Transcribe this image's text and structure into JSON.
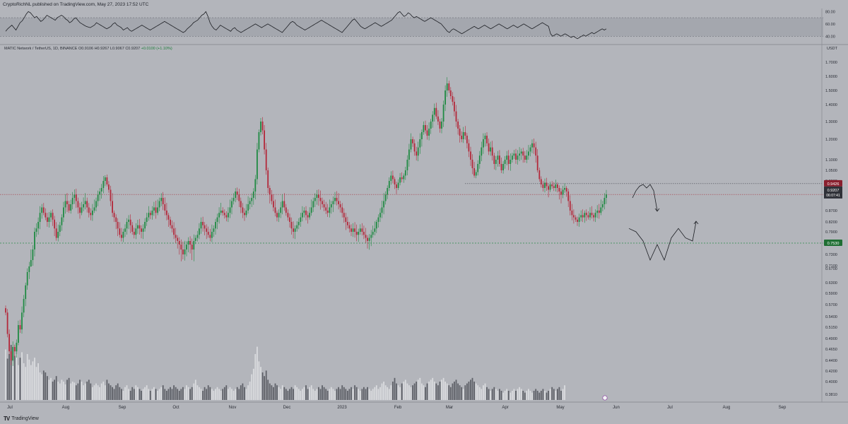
{
  "header": {
    "publisher": "CryptoRichNL published on TradingView.com, May 27, 2023 17:52 UTC"
  },
  "legend": {
    "symbol": "MATIC Network / TetherUS, 1D, BINANCE",
    "o": "O0.9106",
    "h": "H0.9267",
    "l": "L0.9067",
    "c": "C0.9207",
    "chg": "+0.0100 (+1.10%)"
  },
  "currency": "USDT",
  "footer": {
    "brand": "TradingView"
  },
  "colors": {
    "background": "#b3b5bb",
    "up": "#1f8a43",
    "down": "#b3283a",
    "axis_text": "#2a2d35",
    "resistance_line": "#a83a46",
    "support_line": "#2e8f4c",
    "current_price_label": "#8a1f2e",
    "support_label": "#1f6e33"
  },
  "chart_data": [
    {
      "type": "line",
      "name_hint": "oscillator",
      "y_ticks": [
        80,
        60,
        40
      ],
      "y_tick_labels": [
        "80.00",
        "60.00",
        "40.00"
      ],
      "ylim": [
        30,
        85
      ],
      "band": [
        40,
        70
      ],
      "values": [
        48,
        52,
        55,
        58,
        54,
        50,
        56,
        62,
        65,
        70,
        76,
        80,
        78,
        74,
        70,
        72,
        68,
        64,
        66,
        70,
        74,
        72,
        70,
        68,
        66,
        70,
        72,
        74,
        72,
        68,
        66,
        62,
        64,
        68,
        70,
        66,
        62,
        60,
        58,
        56,
        55,
        54,
        56,
        58,
        62,
        60,
        58,
        56,
        54,
        52,
        54,
        56,
        60,
        62,
        58,
        56,
        54,
        50,
        52,
        54,
        50,
        48,
        50,
        52,
        54,
        56,
        58,
        56,
        54,
        52,
        50,
        52,
        54,
        56,
        58,
        60,
        62,
        64,
        62,
        60,
        58,
        56,
        54,
        52,
        50,
        48,
        46,
        48,
        52,
        55,
        58,
        62,
        64,
        66,
        70,
        74,
        76,
        80,
        72,
        62,
        56,
        52,
        50,
        54,
        58,
        56,
        54,
        52,
        50,
        48,
        52,
        54,
        50,
        48,
        46,
        48,
        50,
        52,
        54,
        56,
        58,
        60,
        58,
        56,
        54,
        56,
        58,
        60,
        58,
        56,
        54,
        52,
        50,
        48,
        46,
        50,
        54,
        58,
        62,
        64,
        62,
        58,
        56,
        54,
        52,
        50,
        52,
        54,
        56,
        58,
        60,
        62,
        64,
        66,
        64,
        62,
        60,
        58,
        56,
        54,
        52,
        50,
        48,
        46,
        50,
        54,
        58,
        62,
        66,
        68,
        64,
        60,
        56,
        54,
        52,
        54,
        56,
        58,
        60,
        62,
        60,
        58,
        56,
        58,
        60,
        62,
        64,
        66,
        70,
        74,
        78,
        80,
        76,
        72,
        74,
        78,
        76,
        72,
        70,
        72,
        70,
        68,
        66,
        64,
        66,
        68,
        70,
        68,
        66,
        64,
        62,
        60,
        56,
        52,
        48,
        46,
        50,
        52,
        50,
        48,
        46,
        44,
        46,
        48,
        50,
        52,
        54,
        56,
        54,
        52,
        54,
        56,
        58,
        56,
        54,
        52,
        54,
        56,
        58,
        60,
        58,
        56,
        54,
        52,
        54,
        56,
        58,
        56,
        54,
        56,
        58,
        60,
        58,
        56,
        54,
        52,
        54,
        56,
        58,
        60,
        62,
        60,
        58,
        56,
        44,
        40,
        42,
        44,
        42,
        40,
        42,
        44,
        42,
        40,
        38,
        40,
        38,
        36,
        38,
        40,
        42,
        40,
        42,
        44,
        46,
        44,
        46,
        48,
        50,
        52,
        50,
        52
      ]
    },
    {
      "type": "candlestick",
      "x_tick_labels": [
        "Jul",
        "Aug",
        "Sep",
        "Oct",
        "Nov",
        "Dec",
        "2023",
        "Feb",
        "Mar",
        "Apr",
        "May",
        "Jun",
        "Jul",
        "Aug",
        "Sep"
      ],
      "y_tick_labels": [
        "1.7000",
        "1.6000",
        "1.5000",
        "1.4000",
        "1.3000",
        "1.2000",
        "1.1000",
        "1.0500",
        "0.9900",
        "0.9300",
        "0.8700",
        "0.8200",
        "0.7900",
        "0.7300",
        "0.7100",
        "0.6700",
        "0.6300",
        "0.5900",
        "0.5700",
        "0.5400",
        "0.5150",
        "0.4900",
        "0.4650",
        "0.4400",
        "0.4200",
        "0.4000",
        "0.3810"
      ],
      "ylim": [
        0.37,
        1.78
      ],
      "price_labels": {
        "resistance": "0.9426",
        "current": "0.9207",
        "countdown": "06:07:41",
        "support": "0.7530"
      },
      "levels": {
        "resistance": 0.9426,
        "current": 0.9207,
        "support": 0.753
      },
      "closes": [
        0.55,
        0.5,
        0.46,
        0.44,
        0.47,
        0.46,
        0.48,
        0.52,
        0.51,
        0.55,
        0.58,
        0.62,
        0.66,
        0.7,
        0.72,
        0.74,
        0.79,
        0.8,
        0.82,
        0.86,
        0.88,
        0.86,
        0.84,
        0.82,
        0.84,
        0.86,
        0.83,
        0.8,
        0.77,
        0.79,
        0.81,
        0.84,
        0.88,
        0.9,
        0.89,
        0.87,
        0.89,
        0.91,
        0.92,
        0.9,
        0.88,
        0.86,
        0.88,
        0.89,
        0.9,
        0.88,
        0.86,
        0.85,
        0.87,
        0.88,
        0.9,
        0.92,
        0.93,
        0.95,
        0.99,
        1.01,
        0.97,
        0.94,
        0.9,
        0.86,
        0.84,
        0.82,
        0.8,
        0.78,
        0.77,
        0.79,
        0.8,
        0.82,
        0.83,
        0.81,
        0.79,
        0.78,
        0.8,
        0.81,
        0.8,
        0.79,
        0.8,
        0.82,
        0.84,
        0.86,
        0.85,
        0.87,
        0.88,
        0.86,
        0.88,
        0.9,
        0.91,
        0.89,
        0.87,
        0.85,
        0.83,
        0.81,
        0.8,
        0.78,
        0.77,
        0.76,
        0.75,
        0.74,
        0.73,
        0.74,
        0.75,
        0.76,
        0.75,
        0.74,
        0.76,
        0.77,
        0.78,
        0.8,
        0.82,
        0.81,
        0.8,
        0.79,
        0.78,
        0.77,
        0.79,
        0.8,
        0.82,
        0.84,
        0.86,
        0.87,
        0.86,
        0.85,
        0.84,
        0.86,
        0.88,
        0.9,
        0.91,
        0.93,
        0.92,
        0.9,
        0.88,
        0.86,
        0.85,
        0.87,
        0.89,
        0.9,
        0.91,
        0.93,
        1.0,
        1.15,
        1.24,
        1.3,
        1.25,
        1.15,
        1.05,
        0.95,
        0.92,
        0.9,
        0.88,
        0.86,
        0.84,
        0.86,
        0.88,
        0.9,
        0.88,
        0.86,
        0.84,
        0.82,
        0.8,
        0.79,
        0.8,
        0.81,
        0.82,
        0.84,
        0.86,
        0.87,
        0.85,
        0.84,
        0.86,
        0.88,
        0.9,
        0.91,
        0.92,
        0.91,
        0.9,
        0.89,
        0.88,
        0.87,
        0.86,
        0.88,
        0.89,
        0.9,
        0.91,
        0.9,
        0.89,
        0.88,
        0.86,
        0.84,
        0.82,
        0.81,
        0.8,
        0.79,
        0.8,
        0.79,
        0.78,
        0.79,
        0.8,
        0.79,
        0.78,
        0.77,
        0.76,
        0.77,
        0.78,
        0.79,
        0.8,
        0.82,
        0.84,
        0.86,
        0.88,
        0.9,
        0.92,
        0.95,
        0.99,
        1.02,
        1.0,
        0.97,
        0.95,
        0.98,
        1.01,
        1.0,
        1.02,
        1.05,
        1.1,
        1.15,
        1.2,
        1.18,
        1.14,
        1.12,
        1.16,
        1.2,
        1.24,
        1.28,
        1.25,
        1.22,
        1.26,
        1.3,
        1.34,
        1.38,
        1.33,
        1.3,
        1.26,
        1.3,
        1.4,
        1.5,
        1.55,
        1.5,
        1.46,
        1.42,
        1.36,
        1.3,
        1.26,
        1.22,
        1.2,
        1.24,
        1.22,
        1.18,
        1.14,
        1.1,
        1.06,
        1.02,
        1.04,
        1.08,
        1.12,
        1.16,
        1.2,
        1.22,
        1.18,
        1.14,
        1.16,
        1.12,
        1.08,
        1.1,
        1.12,
        1.08,
        1.05,
        1.08,
        1.1,
        1.12,
        1.08,
        1.1,
        1.12,
        1.13,
        1.1,
        1.12,
        1.13,
        1.14,
        1.12,
        1.1,
        1.12,
        1.14,
        1.16,
        1.18,
        1.16,
        1.12,
        1.05,
        1.0,
        0.97,
        0.95,
        0.98,
        0.96,
        0.94,
        0.97,
        0.96,
        0.95,
        0.97,
        0.95,
        0.93,
        0.92,
        0.94,
        0.95,
        0.93,
        0.9,
        0.87,
        0.85,
        0.84,
        0.83,
        0.82,
        0.84,
        0.85,
        0.84,
        0.86,
        0.85,
        0.84,
        0.86,
        0.85,
        0.84,
        0.86,
        0.87,
        0.86,
        0.88,
        0.89,
        0.91,
        0.9207
      ],
      "volumes": [
        0.55,
        0.45,
        0.5,
        0.6,
        0.42,
        0.48,
        0.5,
        0.38,
        0.46,
        0.52,
        0.4,
        0.36,
        0.5,
        0.44,
        0.38,
        0.42,
        0.46,
        0.36,
        0.4,
        0.3,
        0.28,
        0.32,
        0.3,
        0.26,
        0.22,
        0.24,
        0.2,
        0.22,
        0.26,
        0.2,
        0.18,
        0.22,
        0.2,
        0.17,
        0.22,
        0.24,
        0.18,
        0.2,
        0.19,
        0.16,
        0.18,
        0.22,
        0.2,
        0.16,
        0.18,
        0.2,
        0.22,
        0.18,
        0.14,
        0.16,
        0.18,
        0.16,
        0.14,
        0.18,
        0.2,
        0.16,
        0.22,
        0.18,
        0.16,
        0.14,
        0.12,
        0.16,
        0.18,
        0.14,
        0.12,
        0.1,
        0.14,
        0.16,
        0.12,
        0.1,
        0.14,
        0.12,
        0.16,
        0.14,
        0.12,
        0.1,
        0.12,
        0.14,
        0.16,
        0.12,
        0.1,
        0.12,
        0.14,
        0.12,
        0.1,
        0.12,
        0.14,
        0.16,
        0.12,
        0.1,
        0.12,
        0.14,
        0.12,
        0.16,
        0.14,
        0.12,
        0.1,
        0.12,
        0.14,
        0.12,
        0.16,
        0.14,
        0.12,
        0.14,
        0.18,
        0.22,
        0.16,
        0.14,
        0.12,
        0.1,
        0.14,
        0.12,
        0.16,
        0.14,
        0.12,
        0.1,
        0.12,
        0.14,
        0.12,
        0.1,
        0.12,
        0.14,
        0.16,
        0.12,
        0.14,
        0.12,
        0.1,
        0.12,
        0.14,
        0.12,
        0.16,
        0.18,
        0.14,
        0.12,
        0.16,
        0.2,
        0.28,
        0.34,
        0.5,
        0.58,
        0.42,
        0.36,
        0.3,
        0.26,
        0.32,
        0.22,
        0.18,
        0.16,
        0.14,
        0.18,
        0.16,
        0.14,
        0.12,
        0.16,
        0.14,
        0.12,
        0.1,
        0.12,
        0.14,
        0.12,
        0.16,
        0.14,
        0.12,
        0.1,
        0.12,
        0.14,
        0.16,
        0.12,
        0.14,
        0.16,
        0.12,
        0.1,
        0.12,
        0.14,
        0.12,
        0.16,
        0.14,
        0.12,
        0.1,
        0.12,
        0.14,
        0.12,
        0.1,
        0.12,
        0.14,
        0.12,
        0.16,
        0.14,
        0.12,
        0.1,
        0.12,
        0.14,
        0.12,
        0.16,
        0.14,
        0.12,
        0.1,
        0.12,
        0.14,
        0.12,
        0.14,
        0.12,
        0.1,
        0.12,
        0.14,
        0.16,
        0.12,
        0.14,
        0.18,
        0.2,
        0.16,
        0.14,
        0.12,
        0.16,
        0.2,
        0.24,
        0.18,
        0.16,
        0.14,
        0.18,
        0.2,
        0.22,
        0.18,
        0.16,
        0.14,
        0.16,
        0.18,
        0.2,
        0.22,
        0.24,
        0.18,
        0.16,
        0.14,
        0.18,
        0.2,
        0.22,
        0.24,
        0.2,
        0.18,
        0.16,
        0.2,
        0.22,
        0.24,
        0.2,
        0.18,
        0.16,
        0.14,
        0.18,
        0.2,
        0.22,
        0.18,
        0.16,
        0.14,
        0.12,
        0.16,
        0.18,
        0.2,
        0.22,
        0.24,
        0.2,
        0.18,
        0.16,
        0.14,
        0.12,
        0.16,
        0.18,
        0.14,
        0.12,
        0.1,
        0.12,
        0.14,
        0.12,
        0.1,
        0.12,
        0.1,
        0.08,
        0.1,
        0.12,
        0.1,
        0.08,
        0.1,
        0.12,
        0.1,
        0.12,
        0.14,
        0.12,
        0.1,
        0.08,
        0.1,
        0.12,
        0.1,
        0.08,
        0.1,
        0.12,
        0.1,
        0.08,
        0.1,
        0.12,
        0.1,
        0.08,
        0.1,
        0.12,
        0.14,
        0.12,
        0.1,
        0.12,
        0.14,
        0.1,
        0.12,
        0.16
      ],
      "projection": [
        [
          0.895,
          0.91
        ],
        [
          0.9,
          0.935
        ],
        [
          0.905,
          0.96
        ],
        [
          0.91,
          0.97
        ],
        [
          0.915,
          0.95
        ],
        [
          0.92,
          0.97
        ],
        [
          0.925,
          0.935
        ],
        [
          0.93,
          0.87
        ]
      ],
      "projection2": [
        [
          0.89,
          0.8
        ],
        [
          0.9,
          0.79
        ],
        [
          0.91,
          0.76
        ],
        [
          0.92,
          0.72
        ],
        [
          0.93,
          0.75
        ],
        [
          0.94,
          0.72
        ],
        [
          0.95,
          0.77
        ],
        [
          0.96,
          0.8
        ],
        [
          0.97,
          0.77
        ],
        [
          0.98,
          0.76
        ],
        [
          0.985,
          0.82
        ]
      ]
    }
  ]
}
